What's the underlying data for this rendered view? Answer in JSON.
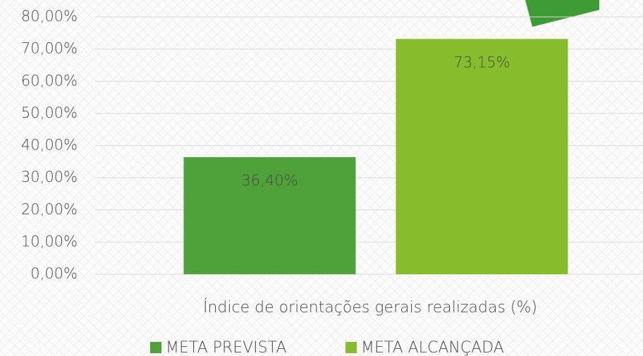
{
  "chart_data": {
    "type": "bar",
    "categories": [
      "Índice de orientações gerais  realizadas  (%)"
    ],
    "series": [
      {
        "name": "META PREVISTA",
        "color": "#4fa13a",
        "values": [
          36.4
        ],
        "value_labels": [
          "36,40%"
        ]
      },
      {
        "name": "META ALCANÇADA",
        "color": "#87bd2c",
        "values": [
          73.15
        ],
        "value_labels": [
          "73,15%"
        ]
      }
    ],
    "ylim": [
      0,
      80
    ],
    "yticks": [
      {
        "value": 0,
        "label": "0,00%"
      },
      {
        "value": 10,
        "label": "10,00%"
      },
      {
        "value": 20,
        "label": "20,00%"
      },
      {
        "value": 30,
        "label": "30,00%"
      },
      {
        "value": 40,
        "label": "40,00%"
      },
      {
        "value": 50,
        "label": "50,00%"
      },
      {
        "value": 60,
        "label": "60,00%"
      },
      {
        "value": 70,
        "label": "70,00%"
      },
      {
        "value": 80,
        "label": "80,00%"
      }
    ],
    "grid": true,
    "legend": "bottom"
  }
}
